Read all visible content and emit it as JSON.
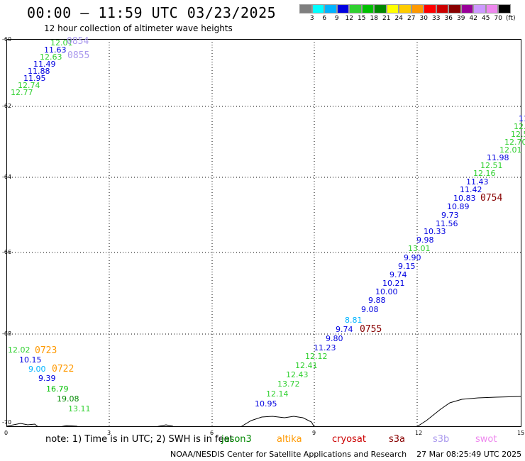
{
  "header": {
    "title": "00:00 – 11:59 UTC 03/23/2025",
    "subtitle": "12 hour collection of altimeter wave heights"
  },
  "color_scale": {
    "colors": [
      "#7f7f7f",
      "#00ffff",
      "#00b3ff",
      "#0000e0",
      "#30d030",
      "#00c000",
      "#008800",
      "#ffff00",
      "#ffcc00",
      "#ff9900",
      "#ff0000",
      "#cc0000",
      "#880000",
      "#990099",
      "#cc99ff",
      "#ee88ee",
      "#000000"
    ],
    "labels": [
      "3",
      "6",
      "9",
      "12",
      "15",
      "18",
      "21",
      "24",
      "27",
      "30",
      "33",
      "36",
      "39",
      "42",
      "45",
      "70"
    ],
    "unit": "(ft)"
  },
  "axes": {
    "x_ticks": [
      "0",
      "3",
      "6",
      "9",
      "12",
      "15"
    ],
    "y_ticks": [
      "-60",
      "-62",
      "-64",
      "-66",
      "-68",
      "-70"
    ]
  },
  "track_labels": [
    {
      "text": "12.01",
      "color": "#30d030"
    },
    {
      "text": "11.63",
      "color": "#0000e0"
    },
    {
      "text": "12.63",
      "color": "#30d030"
    },
    {
      "text": "11.49",
      "color": "#0000e0"
    },
    {
      "text": "11.88",
      "color": "#0000e0"
    },
    {
      "text": "11.95",
      "color": "#0000e0"
    },
    {
      "text": "12.74",
      "color": "#30d030"
    },
    {
      "text": "12.77",
      "color": "#30d030"
    },
    {
      "text": "11.",
      "color": "#0000e0"
    },
    {
      "text": "12.",
      "color": "#30d030"
    },
    {
      "text": "12.59",
      "color": "#30d030"
    },
    {
      "text": "12.70",
      "color": "#30d030"
    },
    {
      "text": "12.01",
      "color": "#30d030"
    },
    {
      "text": "11.98",
      "color": "#0000e0"
    },
    {
      "text": "12.51",
      "color": "#30d030"
    },
    {
      "text": "12.16",
      "color": "#30d030"
    },
    {
      "text": "11.43",
      "color": "#0000e0"
    },
    {
      "text": "11.42",
      "color": "#0000e0"
    },
    {
      "text": "10.83",
      "color": "#0000e0"
    },
    {
      "text": "10.89",
      "color": "#0000e0"
    },
    {
      "text": "9.73",
      "color": "#0000e0"
    },
    {
      "text": "11.56",
      "color": "#0000e0"
    },
    {
      "text": "10.33",
      "color": "#0000e0"
    },
    {
      "text": "9.98",
      "color": "#0000e0"
    },
    {
      "text": "13.01",
      "color": "#30d030"
    },
    {
      "text": "9.90",
      "color": "#0000e0"
    },
    {
      "text": "9.15",
      "color": "#0000e0"
    },
    {
      "text": "9.74",
      "color": "#0000e0"
    },
    {
      "text": "10.21",
      "color": "#0000e0"
    },
    {
      "text": "10.00",
      "color": "#0000e0"
    },
    {
      "text": "9.88",
      "color": "#0000e0"
    },
    {
      "text": "9.08",
      "color": "#0000e0"
    },
    {
      "text": "8.81",
      "color": "#00b3ff"
    },
    {
      "text": "9.74",
      "color": "#0000e0"
    },
    {
      "text": "9.80",
      "color": "#0000e0"
    },
    {
      "text": "11.23",
      "color": "#0000e0"
    },
    {
      "text": "12.12",
      "color": "#30d030"
    },
    {
      "text": "12.41",
      "color": "#30d030"
    },
    {
      "text": "12.43",
      "color": "#30d030"
    },
    {
      "text": "13.72",
      "color": "#30d030"
    },
    {
      "text": "12.14",
      "color": "#30d030"
    },
    {
      "text": "10.95",
      "color": "#0000e0"
    },
    {
      "text": "12.02",
      "color": "#30d030"
    },
    {
      "text": "10.15",
      "color": "#0000e0"
    },
    {
      "text": "9.00",
      "color": "#00b3ff"
    },
    {
      "text": "9.39",
      "color": "#0000e0"
    },
    {
      "text": "16.79",
      "color": "#00c000"
    },
    {
      "text": "19.08",
      "color": "#008800"
    },
    {
      "text": "13.11",
      "color": "#30d030"
    }
  ],
  "pass_labels": [
    {
      "text": "0854",
      "color": "#aa99ee"
    },
    {
      "text": "0855",
      "color": "#aa99ee"
    },
    {
      "text": "0754",
      "color": "#880000"
    },
    {
      "text": "0755",
      "color": "#880000"
    },
    {
      "text": "0723",
      "color": "#ff9900"
    },
    {
      "text": "0722",
      "color": "#ff9900"
    }
  ],
  "footer": {
    "note": "note: 1) Time is in UTC; 2) SWH is in feet",
    "satellites": [
      {
        "name": "jason3",
        "color": "#008800"
      },
      {
        "name": "altika",
        "color": "#ff9900"
      },
      {
        "name": "cryosat",
        "color": "#cc0000"
      },
      {
        "name": "s3a",
        "color": "#880000"
      },
      {
        "name": "s3b",
        "color": "#aa99ee"
      },
      {
        "name": "swot",
        "color": "#ee88ee"
      }
    ],
    "credit": "NOAA/NESDIS Center for Satellite Applications and Research",
    "timestamp": "27 Mar 08:25:49 UTC 2025"
  }
}
